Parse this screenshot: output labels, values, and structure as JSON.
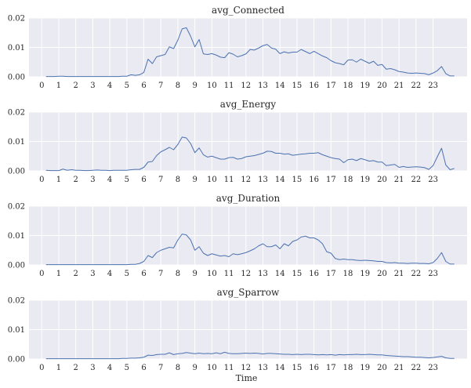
{
  "chart_data": [
    {
      "type": "line",
      "title": "avg_Connected",
      "ylim": [
        0,
        0.02
      ],
      "yticks": [
        "0.00",
        "0.01",
        "0.02"
      ],
      "xticks": [
        "0",
        "1",
        "2",
        "3",
        "4",
        "5",
        "6",
        "7",
        "8",
        "9",
        "10",
        "11",
        "12",
        "13",
        "14",
        "15",
        "16",
        "17",
        "18",
        "19",
        "20",
        "21",
        "22",
        "23"
      ],
      "xlabel": "",
      "grid": true,
      "series": [
        {
          "name": "avg_Connected",
          "color": "#4c72b0",
          "x_start": 0.25,
          "x_step": 0.25,
          "values": [
            0.0001,
            0.0001,
            0.0001,
            0.0002,
            0.0002,
            0.0001,
            0.0001,
            0.0001,
            0.0001,
            0.0001,
            0.0001,
            0.0001,
            0.0001,
            0.0001,
            0.0001,
            0.0001,
            0.0001,
            0.0001,
            0.0002,
            0.0002,
            0.0007,
            0.0005,
            0.0007,
            0.0015,
            0.006,
            0.0045,
            0.0068,
            0.0072,
            0.0076,
            0.0102,
            0.0096,
            0.0125,
            0.0163,
            0.0167,
            0.0138,
            0.0102,
            0.0127,
            0.0078,
            0.0076,
            0.0079,
            0.0074,
            0.0067,
            0.0065,
            0.0082,
            0.0077,
            0.0068,
            0.0072,
            0.0078,
            0.0093,
            0.0091,
            0.0098,
            0.0106,
            0.011,
            0.0098,
            0.0094,
            0.0079,
            0.0085,
            0.0081,
            0.0084,
            0.0084,
            0.0093,
            0.0086,
            0.0079,
            0.0087,
            0.0079,
            0.0071,
            0.0065,
            0.0055,
            0.0048,
            0.0045,
            0.0041,
            0.0057,
            0.0058,
            0.005,
            0.006,
            0.0053,
            0.0046,
            0.0053,
            0.0039,
            0.0042,
            0.0026,
            0.0028,
            0.0024,
            0.0018,
            0.0016,
            0.0013,
            0.0012,
            0.0013,
            0.0012,
            0.0011,
            0.0007,
            0.0013,
            0.0021,
            0.0035,
            0.0011,
            0.0003,
            0.0003
          ]
        }
      ]
    },
    {
      "type": "line",
      "title": "avg_Energy",
      "ylim": [
        0,
        0.02
      ],
      "yticks": [
        "0.00",
        "0.01",
        "0.02"
      ],
      "xticks": [
        "0",
        "1",
        "2",
        "3",
        "4",
        "5",
        "6",
        "7",
        "8",
        "9",
        "10",
        "11",
        "12",
        "13",
        "14",
        "15",
        "16",
        "17",
        "18",
        "19",
        "20",
        "21",
        "22",
        "23"
      ],
      "xlabel": "",
      "grid": true,
      "series": [
        {
          "name": "avg_Energy",
          "color": "#4c72b0",
          "x_start": 0.25,
          "x_step": 0.25,
          "values": [
            0.0002,
            0.0001,
            0.0001,
            0.0001,
            0.0006,
            0.0002,
            0.0004,
            0.0002,
            0.0002,
            0.0001,
            0.0001,
            0.0002,
            0.0003,
            0.0002,
            0.0002,
            0.0001,
            0.0002,
            0.0002,
            0.0002,
            0.0002,
            0.0004,
            0.0005,
            0.0005,
            0.0012,
            0.003,
            0.0032,
            0.0052,
            0.0065,
            0.0072,
            0.008,
            0.0072,
            0.009,
            0.0115,
            0.0112,
            0.0093,
            0.0062,
            0.0078,
            0.0055,
            0.0047,
            0.005,
            0.0045,
            0.004,
            0.004,
            0.0045,
            0.0046,
            0.004,
            0.0042,
            0.0048,
            0.005,
            0.0052,
            0.0056,
            0.006,
            0.0067,
            0.0066,
            0.006,
            0.006,
            0.0057,
            0.0058,
            0.0053,
            0.0055,
            0.0057,
            0.0058,
            0.006,
            0.006,
            0.0062,
            0.0055,
            0.005,
            0.0045,
            0.0042,
            0.004,
            0.0028,
            0.0038,
            0.004,
            0.0035,
            0.0042,
            0.0038,
            0.0033,
            0.0035,
            0.003,
            0.003,
            0.0018,
            0.002,
            0.0022,
            0.0012,
            0.0015,
            0.0012,
            0.0013,
            0.0014,
            0.0013,
            0.0011,
            0.0005,
            0.0018,
            0.0048,
            0.0077,
            0.002,
            0.0004,
            0.0008
          ]
        }
      ]
    },
    {
      "type": "line",
      "title": "avg_Duration",
      "ylim": [
        0,
        0.02
      ],
      "yticks": [
        "0.00",
        "0.01",
        "0.02"
      ],
      "xticks": [
        "0",
        "1",
        "2",
        "3",
        "4",
        "5",
        "6",
        "7",
        "8",
        "9",
        "10",
        "11",
        "12",
        "13",
        "14",
        "15",
        "16",
        "17",
        "18",
        "19",
        "20",
        "21",
        "22",
        "23"
      ],
      "xlabel": "",
      "grid": true,
      "series": [
        {
          "name": "avg_Duration",
          "color": "#4c72b0",
          "x_start": 0.25,
          "x_step": 0.25,
          "values": [
            0.0001,
            0.0001,
            0.0001,
            0.0001,
            0.0001,
            0.0001,
            0.0001,
            0.0001,
            0.0001,
            0.0001,
            0.0001,
            0.0001,
            0.0001,
            0.0001,
            0.0001,
            0.0001,
            0.0001,
            0.0001,
            0.0001,
            0.0001,
            0.0002,
            0.0002,
            0.0005,
            0.0012,
            0.0032,
            0.0025,
            0.0042,
            0.005,
            0.0055,
            0.006,
            0.0058,
            0.0085,
            0.0105,
            0.0102,
            0.0085,
            0.005,
            0.0062,
            0.004,
            0.0032,
            0.0038,
            0.0034,
            0.003,
            0.0032,
            0.0028,
            0.0038,
            0.0035,
            0.0038,
            0.0042,
            0.0048,
            0.0055,
            0.0065,
            0.0072,
            0.0062,
            0.0062,
            0.0068,
            0.0055,
            0.0072,
            0.0065,
            0.008,
            0.0085,
            0.0095,
            0.0098,
            0.0092,
            0.0092,
            0.0085,
            0.0072,
            0.0045,
            0.004,
            0.0022,
            0.0018,
            0.002,
            0.0018,
            0.0018,
            0.0016,
            0.0015,
            0.0016,
            0.0015,
            0.0014,
            0.0012,
            0.0012,
            0.0008,
            0.0007,
            0.0008,
            0.0006,
            0.0006,
            0.0005,
            0.0006,
            0.0006,
            0.0005,
            0.0005,
            0.0004,
            0.0008,
            0.0022,
            0.0042,
            0.0012,
            0.0003,
            0.0003
          ]
        }
      ]
    },
    {
      "type": "line",
      "title": "avg_Sparrow",
      "ylim": [
        0,
        0.02
      ],
      "yticks": [
        "0.00",
        "0.01",
        "0.02"
      ],
      "xticks": [
        "0",
        "1",
        "2",
        "3",
        "4",
        "5",
        "6",
        "7",
        "8",
        "9",
        "10",
        "11",
        "12",
        "13",
        "14",
        "15",
        "16",
        "17",
        "18",
        "19",
        "20",
        "21",
        "22",
        "23"
      ],
      "xlabel": "Time",
      "grid": true,
      "series": [
        {
          "name": "avg_Sparrow",
          "color": "#4c72b0",
          "x_start": 0.25,
          "x_step": 0.25,
          "values": [
            0.0001,
            0.0001,
            0.0001,
            0.0001,
            0.0001,
            0.0001,
            0.0001,
            0.0001,
            0.0001,
            0.0001,
            0.0001,
            0.0001,
            0.0001,
            0.0001,
            0.0001,
            0.0001,
            0.0001,
            0.0001,
            0.0002,
            0.0002,
            0.0003,
            0.0003,
            0.0004,
            0.0006,
            0.0013,
            0.0012,
            0.0015,
            0.0016,
            0.0016,
            0.0021,
            0.0015,
            0.0018,
            0.0019,
            0.0022,
            0.002,
            0.0018,
            0.002,
            0.0018,
            0.0019,
            0.0018,
            0.0021,
            0.0018,
            0.0023,
            0.0019,
            0.0018,
            0.0018,
            0.0019,
            0.002,
            0.0019,
            0.002,
            0.0019,
            0.0017,
            0.0019,
            0.0019,
            0.0018,
            0.0017,
            0.0016,
            0.0016,
            0.0015,
            0.0016,
            0.0015,
            0.0016,
            0.0016,
            0.0015,
            0.0014,
            0.0015,
            0.0014,
            0.0015,
            0.0013,
            0.0015,
            0.0014,
            0.0015,
            0.0015,
            0.0016,
            0.0015,
            0.0015,
            0.0016,
            0.0015,
            0.0014,
            0.0014,
            0.0012,
            0.0011,
            0.001,
            0.0009,
            0.0008,
            0.0008,
            0.0007,
            0.0006,
            0.0006,
            0.0005,
            0.0004,
            0.0005,
            0.0007,
            0.0009,
            0.0004,
            0.0002,
            0.0002
          ]
        }
      ]
    }
  ]
}
